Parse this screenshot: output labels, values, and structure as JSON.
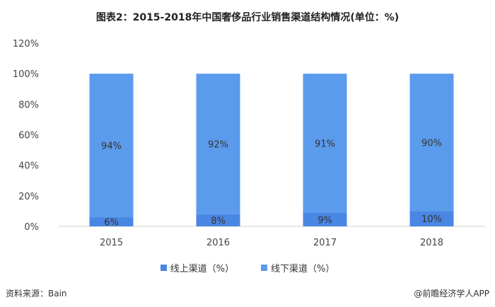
{
  "title": "图表2：2015-2018年中国奢侈品行业销售渠道结构情况(单位：%)",
  "source": "资料来源：Bain",
  "brand": "@前瞻经济学人APP",
  "colors": {
    "online": "#4a86e3",
    "offline": "#5b9bec"
  },
  "chart_data": {
    "type": "bar",
    "stacked": true,
    "categories": [
      "2015",
      "2016",
      "2017",
      "2018"
    ],
    "series": [
      {
        "name": "线上渠道（%）",
        "values": [
          6,
          8,
          9,
          10
        ],
        "labels": [
          "6%",
          "8%",
          "9%",
          "10%"
        ]
      },
      {
        "name": "线下渠道（%）",
        "values": [
          94,
          92,
          91,
          90
        ],
        "labels": [
          "94%",
          "92%",
          "91%",
          "90%"
        ]
      }
    ],
    "ylim": [
      0,
      120
    ],
    "yticks": [
      0,
      20,
      40,
      60,
      80,
      100,
      120
    ],
    "ytick_labels": [
      "0%",
      "20%",
      "40%",
      "60%",
      "80%",
      "100%",
      "120%"
    ],
    "grid": false,
    "legend_position": "bottom"
  }
}
